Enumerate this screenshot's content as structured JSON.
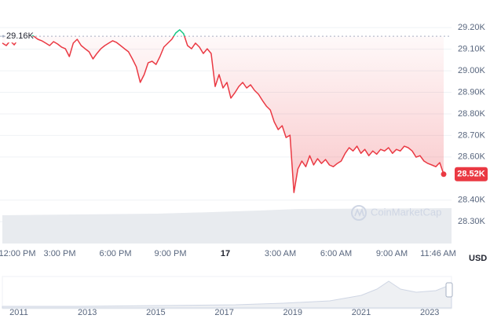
{
  "chart_data": {
    "type": "line",
    "ylim": [
      28200,
      29310
    ],
    "yticks": [
      {
        "value": 29200,
        "label": "29.20K"
      },
      {
        "value": 29100,
        "label": "29.10K"
      },
      {
        "value": 29000,
        "label": "29.00K"
      },
      {
        "value": 28900,
        "label": "28.90K"
      },
      {
        "value": 28800,
        "label": "28.80K"
      },
      {
        "value": 28700,
        "label": "28.70K"
      },
      {
        "value": 28600,
        "label": "28.60K"
      },
      {
        "value": 28400,
        "label": "28.40K"
      },
      {
        "value": 28300,
        "label": "28.30K"
      }
    ],
    "x_labels": [
      "12:00 PM",
      "3:00 PM",
      "6:00 PM",
      "9:00 PM",
      "17",
      "3:00 AM",
      "6:00 AM",
      "9:00 AM",
      "11:46 AM"
    ],
    "currency": "USD",
    "watermark": "CoinMarketCap",
    "reference_line": {
      "value": 29160,
      "label": "29.16K"
    },
    "current_price": {
      "value": 28520,
      "label": "28.52K"
    },
    "up_color": "#16c784",
    "down_color": "#ea3943",
    "series": [
      {
        "name": "Price",
        "values": [
          29128,
          29117,
          29139,
          29120,
          29146,
          29157,
          29160,
          29168,
          29160,
          29146,
          29139,
          29128,
          29117,
          29135,
          29124,
          29110,
          29102,
          29066,
          29128,
          29146,
          29117,
          29102,
          29088,
          29055,
          29080,
          29102,
          29117,
          29128,
          29139,
          29131,
          29117,
          29102,
          29088,
          29055,
          29018,
          28946,
          28982,
          29037,
          29044,
          29029,
          29066,
          29110,
          29128,
          29146,
          29175,
          29190,
          29172,
          29117,
          29102,
          29128,
          29110,
          29080,
          29102,
          29080,
          28927,
          28982,
          28920,
          28946,
          28873,
          28898,
          28927,
          28946,
          28920,
          28935,
          28909,
          28891,
          28862,
          28836,
          28818,
          28763,
          28727,
          28745,
          28690,
          28701,
          28435,
          28544,
          28581,
          28555,
          28606,
          28563,
          28592,
          28570,
          28588,
          28563,
          28555,
          28570,
          28581,
          28617,
          28643,
          28628,
          28650,
          28617,
          28635,
          28606,
          28628,
          28613,
          28635,
          28628,
          28643,
          28617,
          28635,
          28628,
          28650,
          28643,
          28628,
          28599,
          28606,
          28581,
          28570,
          28563,
          28555,
          28574,
          28520
        ]
      }
    ],
    "navigator_labels": [
      "2011",
      "2013",
      "2015",
      "2017",
      "2019",
      "2021",
      "2023"
    ]
  }
}
